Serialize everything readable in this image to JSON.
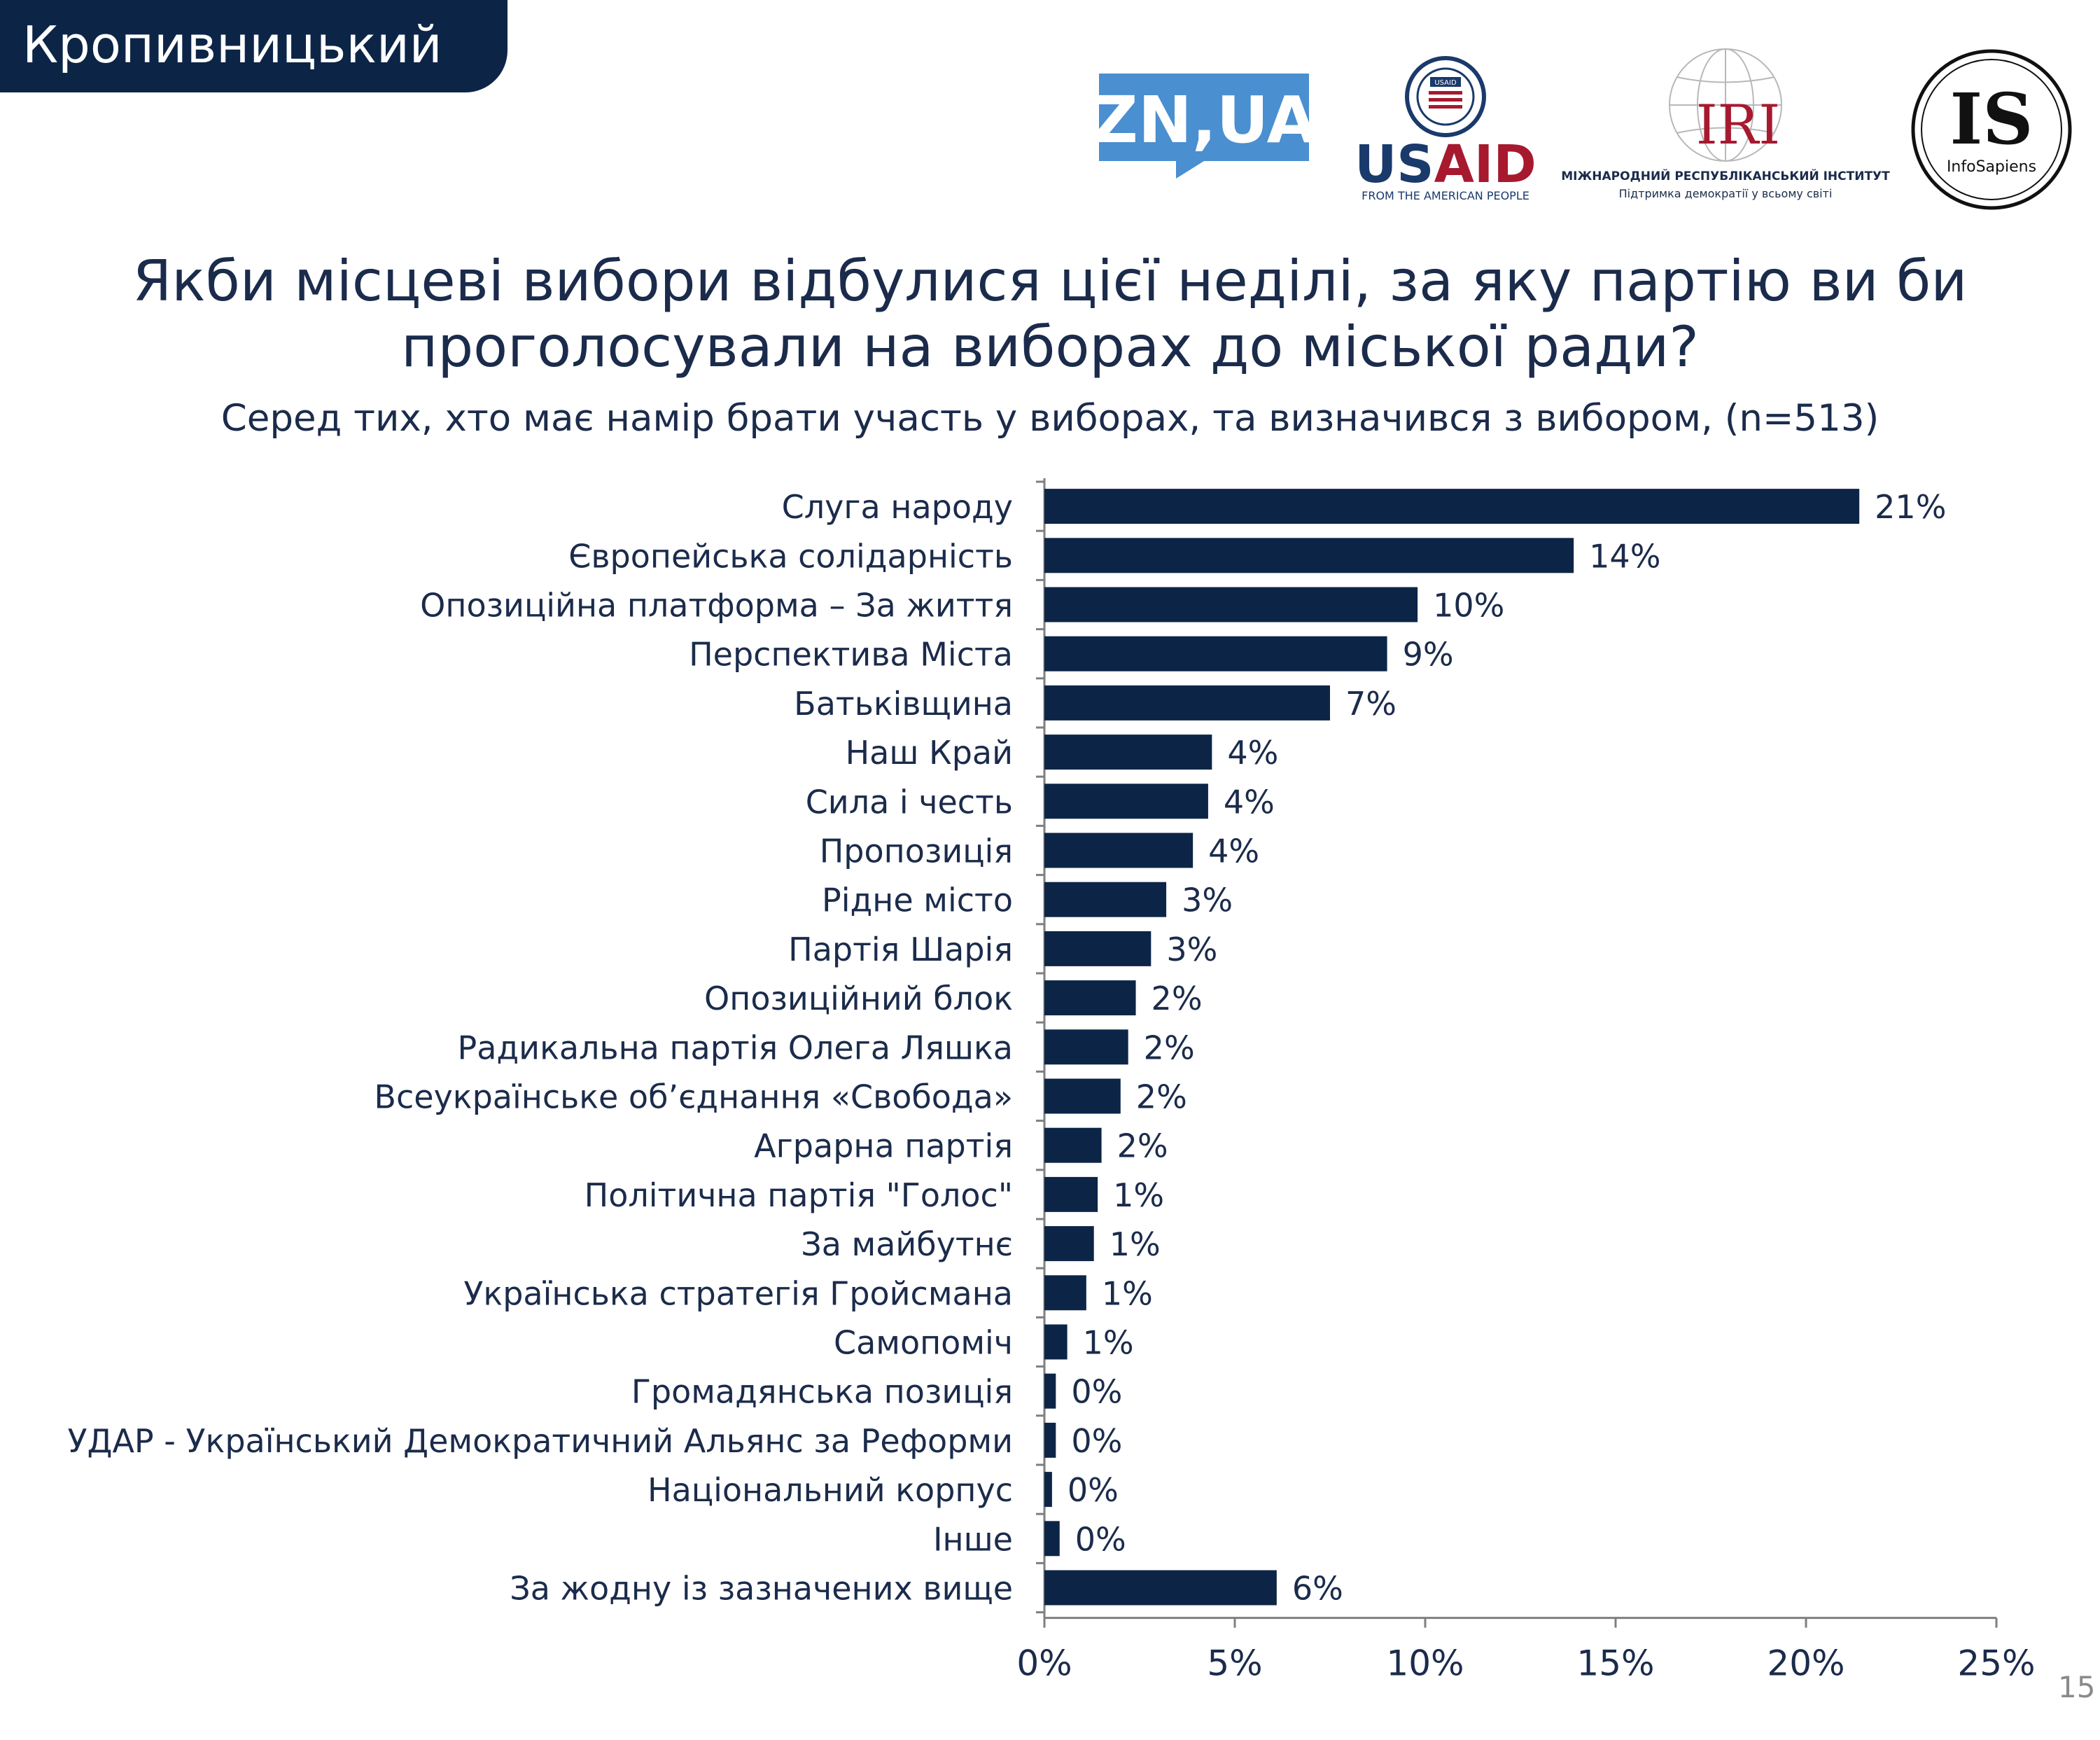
{
  "header": {
    "city": "Кропивницький"
  },
  "logos": {
    "zn": {
      "text": "ZN,UA"
    },
    "usaid": {
      "text": "USAID",
      "tagline": "FROM THE AMERICAN PEOPLE",
      "seal_text": "USAID"
    },
    "iri": {
      "text": "IRI",
      "name": "МІЖНАРОДНИЙ РЕСПУБЛІКАНСЬКИЙ ІНСТИТУТ",
      "tagline": "Підтримка демократії у всьому світі"
    },
    "infosapiens": {
      "text": "IS",
      "name": "InfoSapiens"
    }
  },
  "title": "Якби місцеві вибори відбулися цієї неділі, за яку партію ви би проголосували на виборах до міської ради?",
  "subtitle": "Серед тих, хто має намір брати участь у виборах, та визначився з вибором, (n=513)",
  "page_number": "15",
  "colors": {
    "bar": "#0c2547",
    "text": "#1b2b4b",
    "header": "#0c2547",
    "zn": "#4a8fd0",
    "usaid_red": "#a6192e",
    "usaid_blue": "#1a3a6b",
    "iri_red": "#a6192e"
  },
  "chart_data": {
    "type": "bar",
    "orientation": "horizontal",
    "categories": [
      "Слуга народу",
      "Європейська солідарність",
      "Опозиційна платформа – За життя",
      "Перспектива Міста",
      "Батьківщина",
      "Наш Край",
      "Сила і честь",
      "Пропозиція",
      "Рідне місто",
      "Партія Шарія",
      "Опозиційний блок",
      "Радикальна партія Олега Ляшка",
      "Всеукраїнське об’єднання «Свобода»",
      "Аграрна партія",
      "Політична партія \"Голос\"",
      "За майбутнє",
      "Українська стратегія Гройсмана",
      "Самопоміч",
      "Громадянська позиція",
      "УДАР - Український Демократичний Альянс за Реформи",
      "Національний корпус",
      "Інше",
      "За жодну із зазначених вище"
    ],
    "values": [
      21.4,
      13.9,
      9.8,
      9.0,
      7.5,
      4.4,
      4.3,
      3.9,
      3.2,
      2.8,
      2.4,
      2.2,
      2.0,
      1.5,
      1.4,
      1.3,
      1.1,
      0.6,
      0.3,
      0.3,
      0.2,
      0.4,
      6.1
    ],
    "labels": [
      "21%",
      "14%",
      "10%",
      "9%",
      "7%",
      "4%",
      "4%",
      "4%",
      "3%",
      "3%",
      "2%",
      "2%",
      "2%",
      "2%",
      "1%",
      "1%",
      "1%",
      "1%",
      "0%",
      "0%",
      "0%",
      "0%",
      "6%"
    ],
    "xlim": [
      0,
      25
    ],
    "xticks": [
      0,
      5,
      10,
      15,
      20,
      25
    ],
    "xtick_labels": [
      "0%",
      "5%",
      "10%",
      "15%",
      "20%",
      "25%"
    ],
    "grid": false,
    "legend": "none"
  }
}
